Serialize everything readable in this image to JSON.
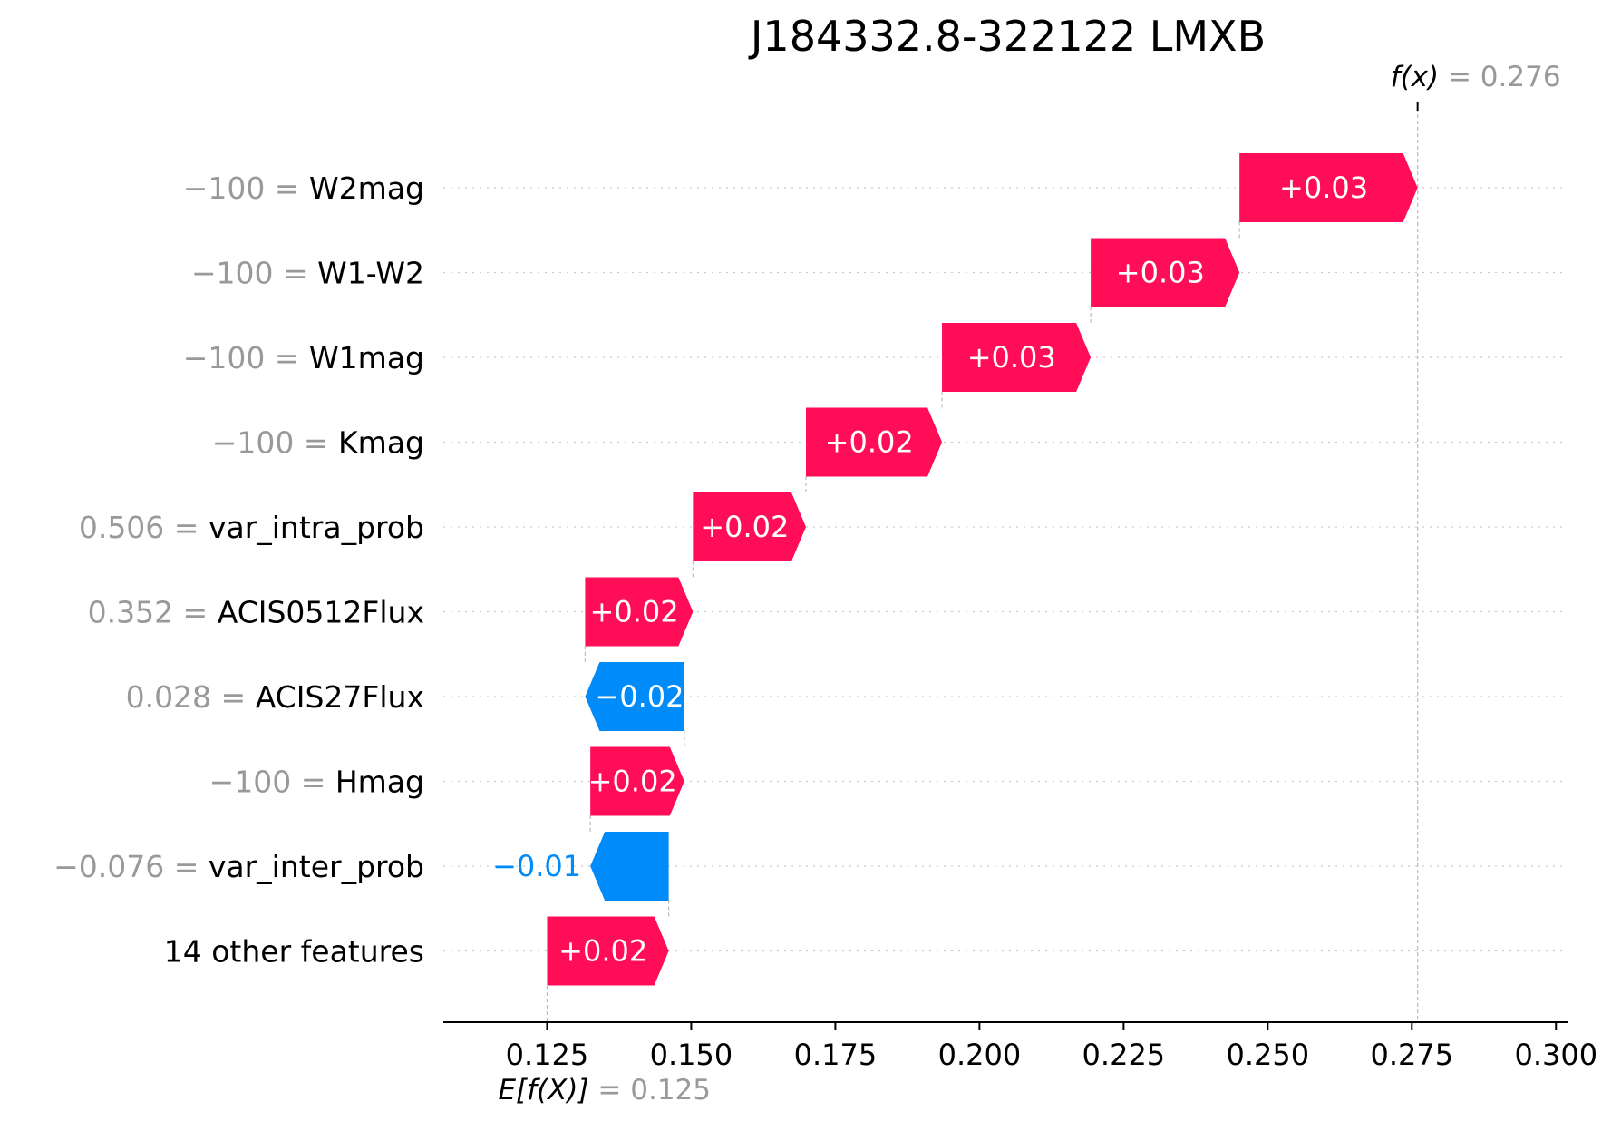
{
  "chart_data": {
    "type": "waterfall",
    "title": "J184332.8-322122 LMXB",
    "base_value": 0.125,
    "base_label": {
      "func": "E[f(X)]",
      "eq": "= 0.125"
    },
    "output_value": 0.276,
    "output_label": {
      "func": "f(x)",
      "eq": "= 0.276"
    },
    "xlim": [
      0.107,
      0.302
    ],
    "xticks": [
      {
        "value": 0.125,
        "label": "0.125"
      },
      {
        "value": 0.15,
        "label": "0.150"
      },
      {
        "value": 0.175,
        "label": "0.175"
      },
      {
        "value": 0.2,
        "label": "0.200"
      },
      {
        "value": 0.225,
        "label": "0.225"
      },
      {
        "value": 0.25,
        "label": "0.250"
      },
      {
        "value": 0.275,
        "label": "0.275"
      },
      {
        "value": 0.3,
        "label": "0.300"
      }
    ],
    "features": [
      {
        "value_text": "−100 =",
        "name": "W2mag",
        "start": 0.2451,
        "end": 0.276,
        "label": "+0.03"
      },
      {
        "value_text": "−100 =",
        "name": "W1-W2",
        "start": 0.2193,
        "end": 0.2451,
        "label": "+0.03"
      },
      {
        "value_text": "−100 =",
        "name": "W1mag",
        "start": 0.1935,
        "end": 0.2193,
        "label": "+0.03"
      },
      {
        "value_text": "−100 =",
        "name": "Kmag",
        "start": 0.1699,
        "end": 0.1935,
        "label": "+0.02"
      },
      {
        "value_text": "0.506 =",
        "name": "var_intra_prob",
        "start": 0.1503,
        "end": 0.1699,
        "label": "+0.02"
      },
      {
        "value_text": "0.352 =",
        "name": "ACIS0512Flux",
        "start": 0.1316,
        "end": 0.1503,
        "label": "+0.02"
      },
      {
        "value_text": "0.028 =",
        "name": "ACIS27Flux",
        "start": 0.1488,
        "end": 0.1316,
        "label": "−0.02"
      },
      {
        "value_text": "−100 =",
        "name": "Hmag",
        "start": 0.1325,
        "end": 0.1488,
        "label": "+0.02"
      },
      {
        "value_text": "−0.076 =",
        "name": "var_inter_prob",
        "start": 0.1461,
        "end": 0.1325,
        "label": "−0.01"
      },
      {
        "value_text": "",
        "name": "14 other features",
        "start": 0.125,
        "end": 0.1461,
        "label": "+0.02"
      }
    ],
    "colors": {
      "positive": "#ff0d57",
      "negative": "#008bfb",
      "grid": "#cccccc",
      "muted": "#999999"
    }
  }
}
